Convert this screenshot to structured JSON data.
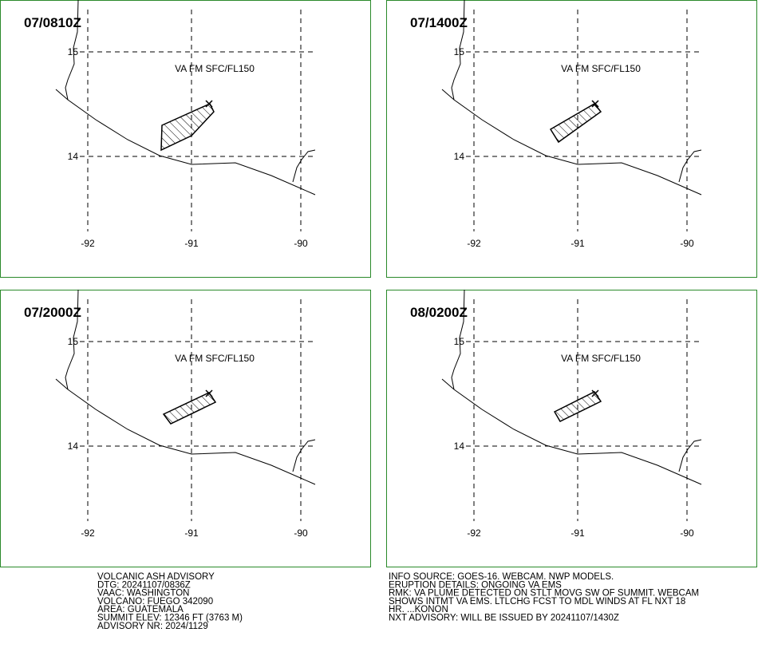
{
  "panels": [
    {
      "time": "07/0810Z",
      "layer": "VA FM SFC/FL150",
      "lat_labels": [
        "15",
        "14"
      ],
      "lon_labels": [
        "-92",
        "-91",
        "-90"
      ]
    },
    {
      "time": "07/1400Z",
      "layer": "VA FM SFC/FL150",
      "lat_labels": [
        "15",
        "14"
      ],
      "lon_labels": [
        "-92",
        "-91",
        "-90"
      ]
    },
    {
      "time": "07/2000Z",
      "layer": "VA FM SFC/FL150",
      "lat_labels": [
        "15",
        "14"
      ],
      "lon_labels": [
        "-92",
        "-91",
        "-90"
      ]
    },
    {
      "time": "08/0200Z",
      "layer": "VA FM SFC/FL150",
      "lat_labels": [
        "15",
        "14"
      ],
      "lon_labels": [
        "-92",
        "-91",
        "-90"
      ]
    }
  ],
  "left_text": [
    "VOLCANIC ASH ADVISORY",
    "DTG: 20241107/0836Z",
    "VAAC: WASHINGTON",
    "VOLCANO: FUEGO 342090",
    "AREA: GUATEMALA",
    "SUMMIT ELEV: 12346 FT (3763 M)",
    "ADVISORY NR: 2024/1129"
  ],
  "right_text": [
    "INFO SOURCE: GOES-16. WEBCAM. NWP MODELS.",
    "ERUPTION DETAILS: ONGOING VA EMS",
    "RMK: VA PLUME DETECTED ON STLT MOVG SW OF SUMMIT. WEBCAM",
    "SHOWS INTMT VA EMS. LTLCHG FCST TO MDL WINDS AT FL NXT 18",
    "HR. ...KONON",
    "NXT ADVISORY: WILL BE ISSUED BY 20241107/1430Z"
  ]
}
